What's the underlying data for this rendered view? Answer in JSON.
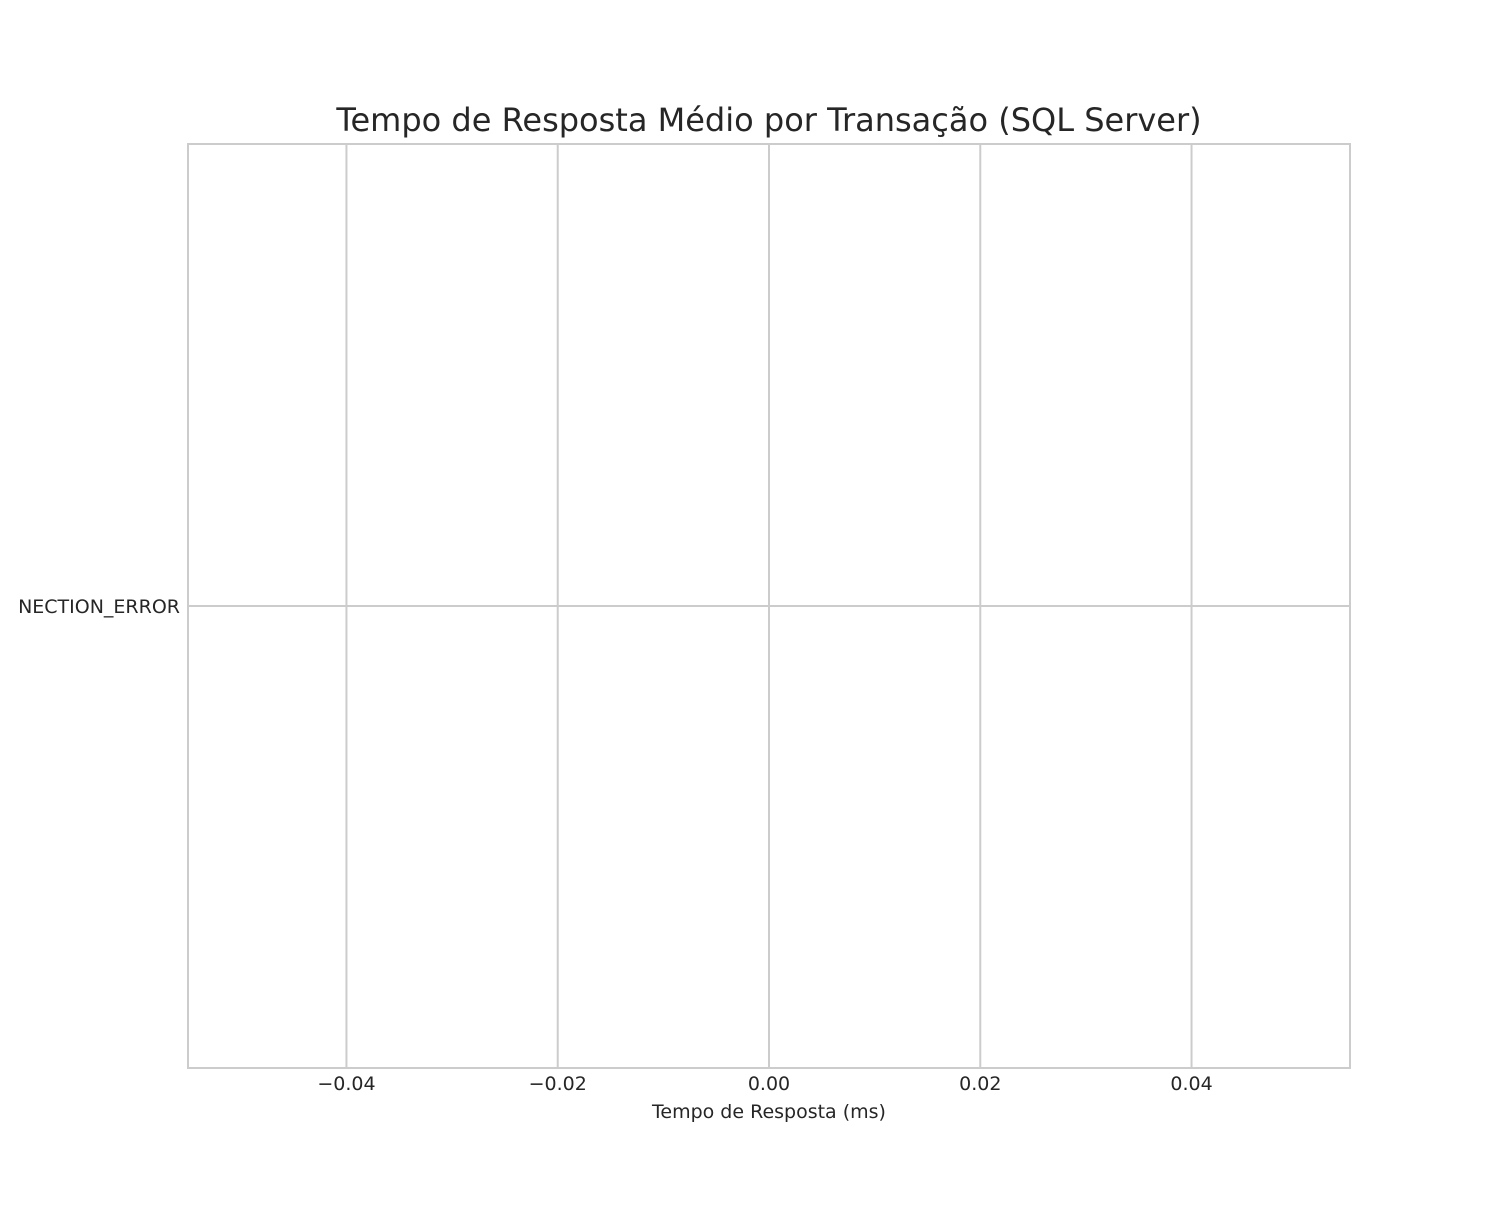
{
  "chart_data": {
    "type": "bar",
    "orientation": "horizontal",
    "title": "Tempo de Resposta Médio por Transação (SQL Server)",
    "xlabel": "Tempo de Resposta (ms)",
    "ylabel": "",
    "categories": [
      "NECTION_ERROR"
    ],
    "values": [
      0
    ],
    "xlim": [
      -0.055,
      0.055
    ],
    "xticks": [
      -0.04,
      -0.02,
      0.0,
      0.02,
      0.04
    ],
    "xtick_labels": [
      "−0.04",
      "−0.02",
      "0.00",
      "0.02",
      "0.04"
    ],
    "grid": true,
    "colors": {
      "grid": "#cccccc",
      "frame": "#cccccc",
      "text": "#262626",
      "background": "#ffffff"
    }
  }
}
